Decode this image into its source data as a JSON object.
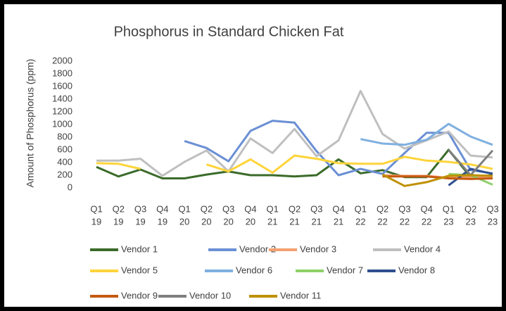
{
  "chart_data": {
    "type": "line",
    "title": "Phosphorus in Standard Chicken Fat",
    "y_label": "Amount of Phosphorus (ppm)",
    "categories": [
      [
        "Q1",
        "19"
      ],
      [
        "Q2",
        "19"
      ],
      [
        "Q3",
        "19"
      ],
      [
        "Q4",
        "19"
      ],
      [
        "Q1",
        "20"
      ],
      [
        "Q2",
        "20"
      ],
      [
        "Q3",
        "20"
      ],
      [
        "Q4",
        "20"
      ],
      [
        "Q1",
        "21"
      ],
      [
        "Q2",
        "21"
      ],
      [
        "Q3",
        "21"
      ],
      [
        "Q4",
        "21"
      ],
      [
        "Q1",
        "22"
      ],
      [
        "Q2",
        "22"
      ],
      [
        "Q3",
        "22"
      ],
      [
        "Q4",
        "22"
      ],
      [
        "Q1",
        "23"
      ],
      [
        "Q2",
        "23"
      ],
      [
        "Q3",
        "23"
      ]
    ],
    "series": [
      {
        "name": "Vendor 1",
        "color": "#3b6b2a",
        "values": [
          330,
          180,
          290,
          150,
          150,
          210,
          260,
          200,
          200,
          180,
          200,
          450,
          230,
          280,
          170,
          170,
          600,
          170,
          200
        ]
      },
      {
        "name": "Vendor 2",
        "color": "#6a8fd4",
        "values": [
          null,
          null,
          null,
          null,
          740,
          630,
          420,
          900,
          1060,
          1030,
          580,
          200,
          300,
          220,
          550,
          870,
          870,
          280,
          230
        ]
      },
      {
        "name": "Vendor 3",
        "color": "#f4a070",
        "values": [
          null,
          null,
          null,
          null,
          null,
          null,
          null,
          null,
          null,
          null,
          null,
          null,
          null,
          200,
          190,
          190,
          160,
          170,
          160
        ]
      },
      {
        "name": "Vendor 4",
        "color": "#bfbfbf",
        "values": [
          430,
          430,
          460,
          190,
          410,
          590,
          260,
          780,
          550,
          930,
          500,
          750,
          1530,
          850,
          620,
          750,
          890,
          510,
          480
        ]
      },
      {
        "name": "Vendor 5",
        "color": "#ffd43b",
        "values": [
          390,
          380,
          300,
          null,
          null,
          370,
          260,
          450,
          240,
          510,
          460,
          390,
          380,
          380,
          490,
          430,
          410,
          370,
          300
        ]
      },
      {
        "name": "Vendor 6",
        "color": "#7fb0e0",
        "values": [
          null,
          null,
          null,
          null,
          null,
          null,
          null,
          null,
          null,
          null,
          null,
          null,
          770,
          700,
          680,
          760,
          1010,
          810,
          680
        ]
      },
      {
        "name": "Vendor 7",
        "color": "#8fd06a",
        "values": [
          null,
          null,
          null,
          null,
          null,
          null,
          null,
          null,
          null,
          null,
          null,
          null,
          null,
          null,
          null,
          null,
          220,
          200,
          50
        ]
      },
      {
        "name": "Vendor 8",
        "color": "#2f4f8f",
        "values": [
          null,
          null,
          null,
          null,
          null,
          null,
          null,
          null,
          null,
          null,
          null,
          null,
          null,
          null,
          null,
          null,
          40,
          300,
          220
        ]
      },
      {
        "name": "Vendor 9",
        "color": "#c55a11",
        "values": [
          null,
          null,
          null,
          null,
          null,
          null,
          null,
          null,
          null,
          null,
          null,
          null,
          null,
          180,
          180,
          180,
          150,
          140,
          150
        ]
      },
      {
        "name": "Vendor 10",
        "color": "#7f7f7f",
        "values": [
          null,
          null,
          null,
          null,
          null,
          null,
          null,
          null,
          null,
          null,
          null,
          null,
          null,
          null,
          null,
          null,
          600,
          200,
          590
        ]
      },
      {
        "name": "Vendor 11",
        "color": "#bf9000",
        "values": [
          null,
          null,
          null,
          null,
          null,
          null,
          null,
          null,
          null,
          null,
          null,
          null,
          null,
          210,
          30,
          90,
          190,
          200,
          190
        ]
      }
    ],
    "ylim": [
      0,
      2000
    ],
    "yticks": [
      0,
      200,
      400,
      600,
      800,
      1000,
      1200,
      1400,
      1600,
      1800,
      2000
    ],
    "grid": false,
    "legend": "bottom"
  }
}
